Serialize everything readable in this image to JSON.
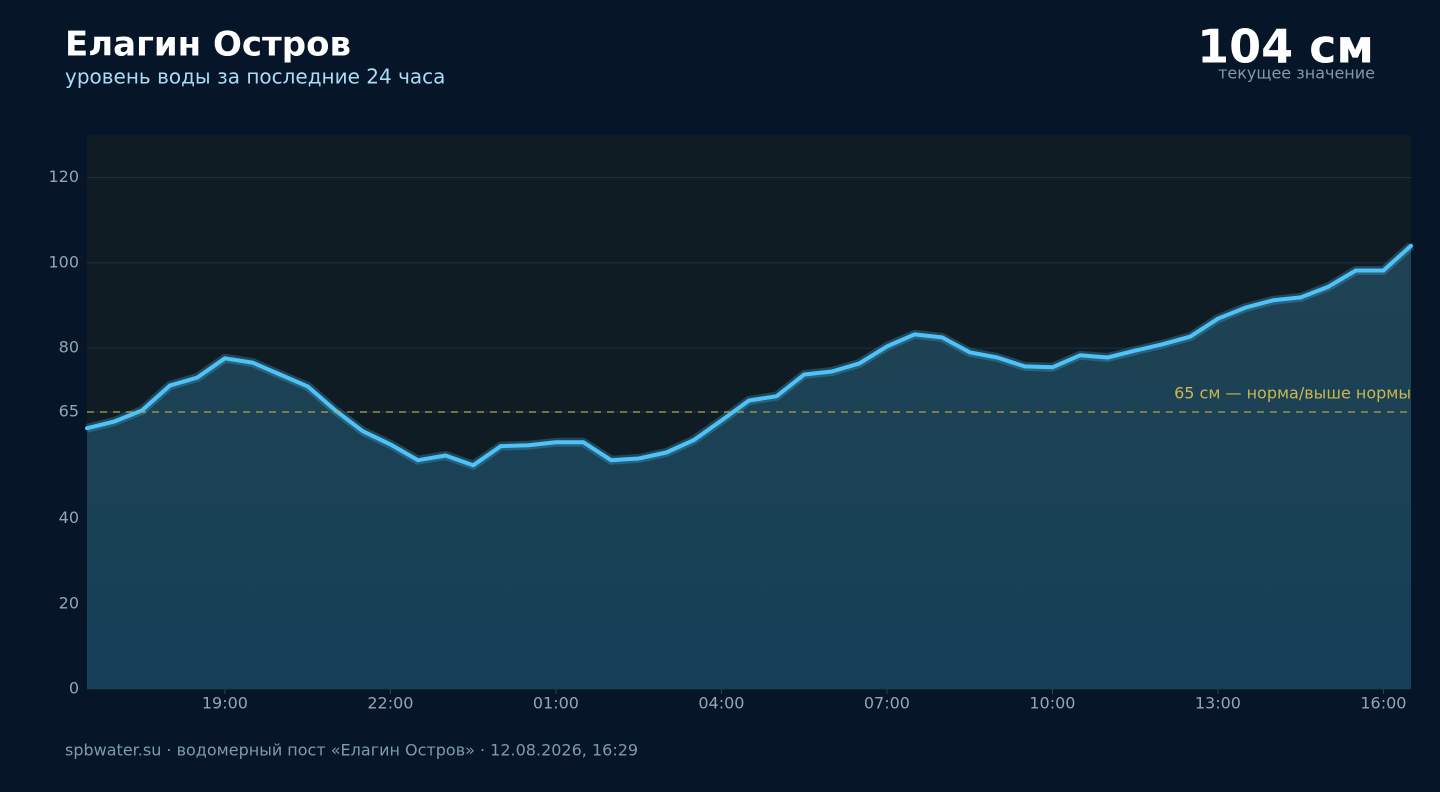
{
  "chart_data": {
    "type": "line",
    "title": "Елагин Остров",
    "subtitle": "уровень воды за последние 24 часа",
    "current": "104 см",
    "current_label": "текущее значение",
    "source": "spbwater.su · водомерный пост «Елагин Остров» · 12.08.2026, 16:29",
    "threshold": 65,
    "threshold_label": "65 см — норма/выше нормы",
    "x": [
      16.5,
      17,
      17.5,
      18,
      18.5,
      19,
      19.5,
      20,
      20.5,
      21,
      21.5,
      22,
      22.5,
      23,
      23.5,
      24,
      24.5,
      25,
      25.5,
      26,
      26.5,
      27,
      27.5,
      28,
      28.5,
      29,
      29.5,
      30,
      30.5,
      31,
      31.5,
      32,
      32.5,
      33,
      33.5,
      34,
      34.5,
      35,
      35.5,
      36,
      36.5,
      37,
      37.5,
      38,
      38.5,
      39,
      39.5,
      40,
      40.5
    ],
    "series": [
      {
        "name": "уровень воды",
        "color": "#4fc3f7",
        "values": [
          61.2,
          62.8,
          65.4,
          71.2,
          73.1,
          77.6,
          76.6,
          73.8,
          71.0,
          65.4,
          60.5,
          57.4,
          53.7,
          54.8,
          52.5,
          57.0,
          57.2,
          57.9,
          57.9,
          53.7,
          54.1,
          55.5,
          58.4,
          63.0,
          67.7,
          68.7,
          73.8,
          74.5,
          76.4,
          80.4,
          83.2,
          82.5,
          79.0,
          77.8,
          75.7,
          75.5,
          78.3,
          77.8,
          79.4,
          80.9,
          82.7,
          86.9,
          89.5,
          91.2,
          91.9,
          94.4,
          98.2,
          98.2,
          104
        ]
      }
    ],
    "xlim": [
      16.5,
      40.5
    ],
    "xticks": [
      {
        "value": 19,
        "label": "19:00"
      },
      {
        "value": 22,
        "label": "22:00"
      },
      {
        "value": 25,
        "label": "01:00"
      },
      {
        "value": 28,
        "label": "04:00"
      },
      {
        "value": 31,
        "label": "07:00"
      },
      {
        "value": 34,
        "label": "10:00"
      },
      {
        "value": 37,
        "label": "13:00"
      },
      {
        "value": 40,
        "label": "16:00"
      }
    ],
    "ylim": [
      0,
      130
    ],
    "yticks": [
      0,
      20,
      40,
      65,
      80,
      100,
      120
    ],
    "grid": true
  }
}
